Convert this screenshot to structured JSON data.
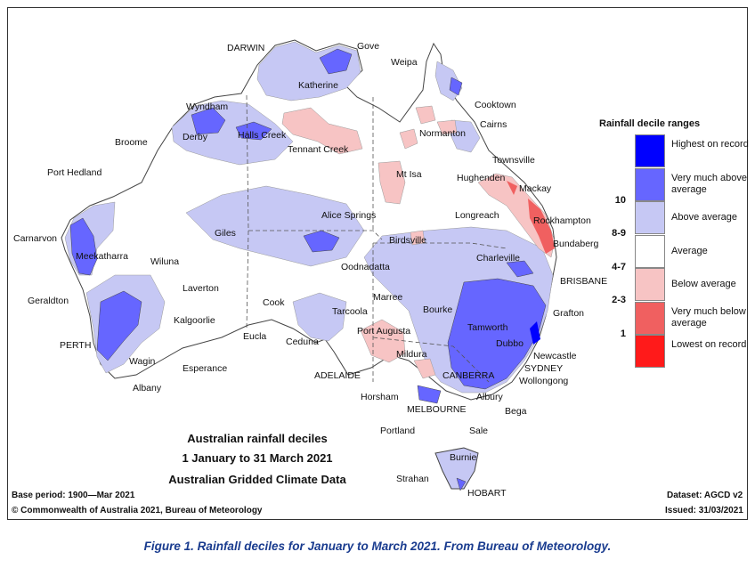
{
  "legend": {
    "title": "Rainfall decile ranges",
    "categories": [
      {
        "label": "Highest on record",
        "range": "",
        "color": "#0000ff"
      },
      {
        "label": "Very much above average",
        "range": "10",
        "color": "#6666ff"
      },
      {
        "label": "Above average",
        "range": "8-9",
        "color": "#c6c8f4"
      },
      {
        "label": "Average",
        "range": "4-7",
        "color": "#ffffff"
      },
      {
        "label": "Below average",
        "range": "2-3",
        "color": "#f7c4c4"
      },
      {
        "label": "Very much below average",
        "range": "1",
        "color": "#f06060"
      },
      {
        "label": "Lowest on record",
        "range": "",
        "color": "#ff1a1a"
      }
    ]
  },
  "map_title": {
    "line1": "Australian rainfall deciles",
    "line2": "1 January to 31 March 2021",
    "line3": "Australian Gridded Climate Data"
  },
  "footer": {
    "base_period": "Base period: 1900—Mar 2021",
    "copyright": "© Commonwealth of Australia 2021, Bureau of Meteorology",
    "dataset": "Dataset: AGCD v2",
    "issued": "Issued: 31/03/2021"
  },
  "caption": "Figure 1. Rainfall deciles for January to March 2021. From Bureau of Meteorology.",
  "places": [
    "DARWIN",
    "Gove",
    "Weipa",
    "Katherine",
    "Cooktown",
    "Wyndham",
    "Cairns",
    "Derby",
    "Halls Creek",
    "Normanton",
    "Broome",
    "Tennant Creek",
    "Townsville",
    "Port Hedland",
    "Mt Isa",
    "Hughenden",
    "Mackay",
    "Longreach",
    "Rockhampton",
    "Alice Springs",
    "Giles",
    "Birdsville",
    "Bundaberg",
    "Carnarvon",
    "Meekatharra",
    "Wiluna",
    "Oodnadatta",
    "Charleville",
    "Laverton",
    "BRISBANE",
    "Geraldton",
    "Cook",
    "Marree",
    "Bourke",
    "Grafton",
    "Tarcoola",
    "Kalgoorlie",
    "Port Augusta",
    "Tamworth",
    "Eucla",
    "Ceduna",
    "Dubbo",
    "PERTH",
    "Mildura",
    "Newcastle",
    "Wagin",
    "Esperance",
    "ADELAIDE",
    "CANBERRA",
    "SYDNEY",
    "Wollongong",
    "Albany",
    "Horsham",
    "Albury",
    "MELBOURNE",
    "Bega",
    "Portland",
    "Sale",
    "Burnie",
    "Strahan",
    "HOBART"
  ]
}
